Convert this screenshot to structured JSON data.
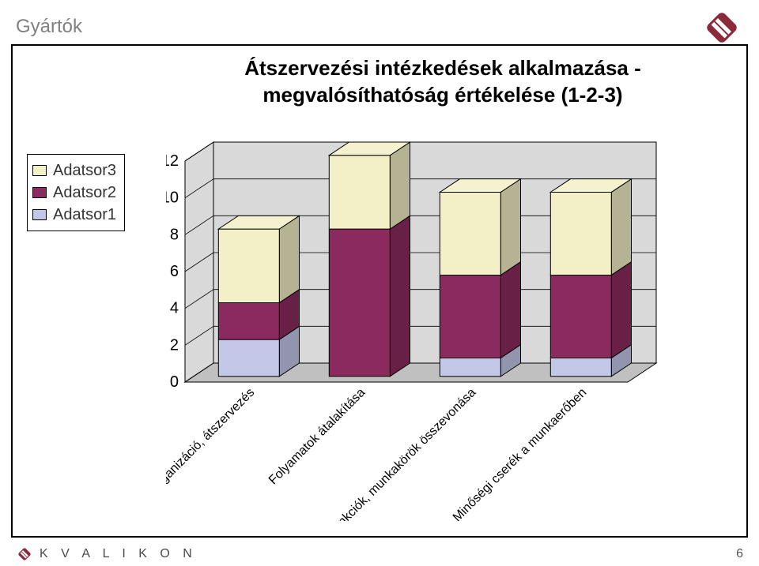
{
  "page": {
    "corner_title": "Gyártók",
    "slide_number": "6",
    "brand_text": "K V A L I K O N"
  },
  "chart": {
    "type": "stacked-bar-3d",
    "title_line1": "Átszervezési intézkedések alkalmazása -",
    "title_line2": "megvalósíthatóság értékelése (1-2-3)",
    "categories": [
      "Reorganizáció, átszervezés",
      "Folyamatok átalakítása",
      "Funkciók, munkakörök összevonása",
      "Minőségi cserék a munkaerőben"
    ],
    "series": [
      {
        "name": "Adatsor3",
        "color": "#f3efc6",
        "values": [
          4.0,
          4.0,
          4.5,
          4.5
        ]
      },
      {
        "name": "Adatsor2",
        "color": "#8b2a5e",
        "values": [
          2.0,
          8.0,
          4.5,
          4.5
        ]
      },
      {
        "name": "Adatsor1",
        "color": "#c3c7e8",
        "values": [
          2.0,
          0.0,
          1.0,
          1.0
        ]
      }
    ],
    "y": {
      "min": 0,
      "max": 12,
      "step": 2
    },
    "styling": {
      "background_color": "#ffffff",
      "plot_back_wall": "#d9d9d9",
      "plot_floor": "#c0c0c0",
      "grid_color": "#000000",
      "bar_width_ratio": 0.55,
      "axis_label_fontsize": 20,
      "category_label_fontsize": 16,
      "title_fontsize": 26,
      "legend_fontsize": 20,
      "legend_border": "#000000"
    }
  },
  "logo": {
    "shape_color": "#8b2a3a",
    "inner_color": "#ffffff"
  }
}
